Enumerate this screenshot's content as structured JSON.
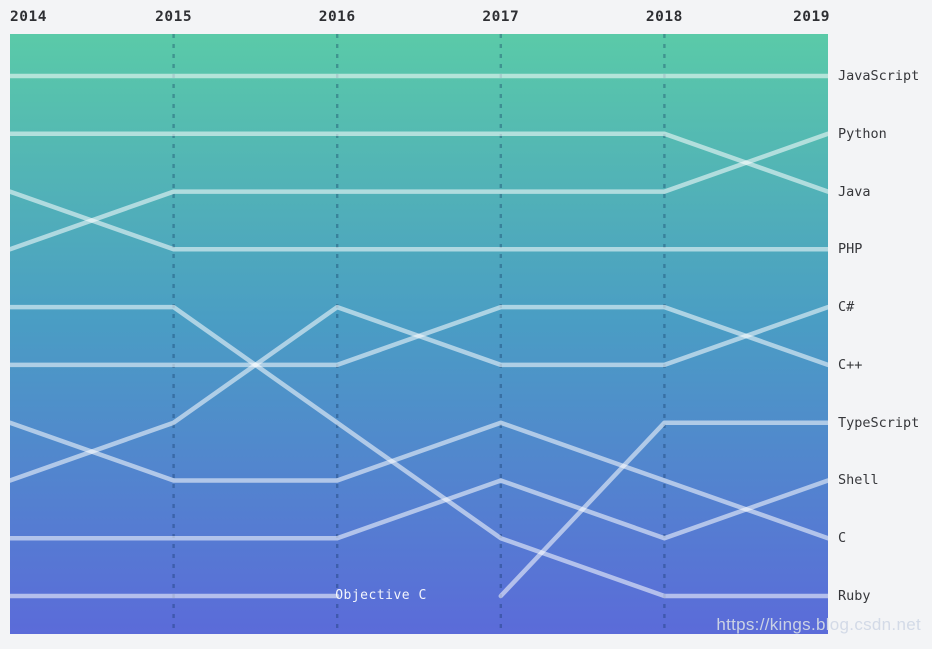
{
  "page": {
    "background": "#f3f4f6",
    "watermark": "https://kings.blog.csdn.net"
  },
  "chart_data": {
    "type": "line",
    "subtype": "bump-ranking",
    "title": "",
    "x": [
      2014,
      2015,
      2016,
      2017,
      2018,
      2019
    ],
    "x_axis_labels": [
      "2014",
      "2015",
      "2016",
      "2017",
      "2018",
      "2019"
    ],
    "y_meaning": "language popularity rank (1 = top)",
    "ylim": [
      1,
      10
    ],
    "grid": "vertical-dashed",
    "legend_position": "right-edge-labels",
    "series": [
      {
        "name": "JavaScript",
        "ranks": [
          1,
          1,
          1,
          1,
          1,
          1
        ]
      },
      {
        "name": "Python",
        "ranks": [
          4,
          3,
          3,
          3,
          3,
          2
        ]
      },
      {
        "name": "Java",
        "ranks": [
          2,
          2,
          2,
          2,
          2,
          3
        ]
      },
      {
        "name": "PHP",
        "ranks": [
          3,
          4,
          4,
          4,
          4,
          4
        ]
      },
      {
        "name": "C#",
        "ranks": [
          8,
          7,
          5,
          6,
          6,
          5
        ]
      },
      {
        "name": "C++",
        "ranks": [
          6,
          6,
          6,
          5,
          5,
          6
        ]
      },
      {
        "name": "TypeScript",
        "ranks": [
          null,
          null,
          null,
          10,
          7,
          7
        ]
      },
      {
        "name": "Shell",
        "ranks": [
          9,
          9,
          9,
          8,
          9,
          8
        ]
      },
      {
        "name": "C",
        "ranks": [
          7,
          8,
          8,
          7,
          8,
          9
        ]
      },
      {
        "name": "Ruby",
        "ranks": [
          5,
          5,
          7,
          9,
          10,
          10
        ]
      },
      {
        "name": "Objective C",
        "ranks": [
          10,
          10,
          10,
          null,
          null,
          null
        ]
      }
    ],
    "right_labels": [
      "JavaScript",
      "Python",
      "Java",
      "PHP",
      "C#",
      "C++",
      "TypeScript",
      "Shell",
      "C",
      "Ruby"
    ],
    "inline_label": {
      "text": "Objective C",
      "year": 2016,
      "rank": 10
    },
    "colors": {
      "gradient_top": "#5acaa8",
      "gradient_mid": "#4a9dc4",
      "gradient_bottom": "#5b6bd9",
      "line": "rgba(255,255,255,0.55)",
      "gridline": "rgba(8,44,88,0.32)",
      "axis_text": "#2e2f33",
      "right_label_text": "#36373b",
      "inline_label_text": "rgba(255,255,255,0.93)",
      "watermark_text": "rgba(209,216,230,0.95)"
    }
  }
}
